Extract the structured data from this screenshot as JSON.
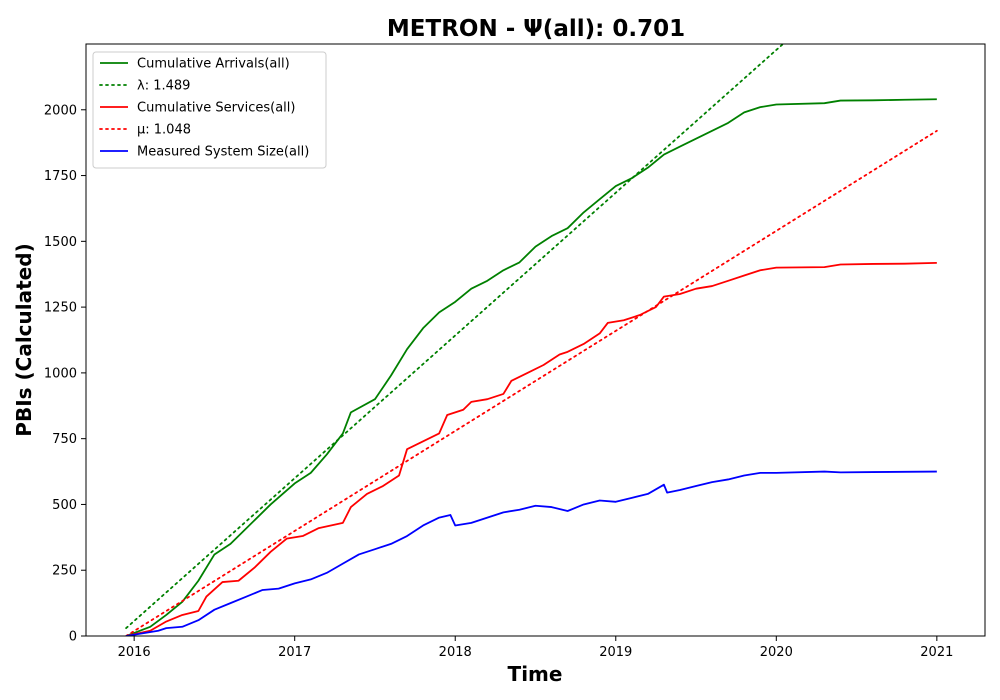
{
  "chart_data": {
    "type": "line",
    "title": "METRON -  Ψ(all): 0.701",
    "xlabel": "Time",
    "ylabel": "PBIs (Calculated)",
    "xlim": [
      2015.7,
      2021.3
    ],
    "ylim": [
      0,
      2250
    ],
    "x_ticks": [
      2016,
      2017,
      2018,
      2019,
      2020,
      2021
    ],
    "x_tick_labels": [
      "2016",
      "2017",
      "2018",
      "2019",
      "2020",
      "2021"
    ],
    "y_ticks": [
      0,
      250,
      500,
      750,
      1000,
      1250,
      1500,
      1750,
      2000
    ],
    "y_tick_labels": [
      "0",
      "250",
      "500",
      "750",
      "1000",
      "1250",
      "1500",
      "1750",
      "2000"
    ],
    "grid": false,
    "legend_position": "top-left",
    "series": [
      {
        "name": "Cumulative Arrivals(all)",
        "legend_label": "Cumulative Arrivals(all)",
        "color": "#008000",
        "style": "solid",
        "x": [
          2015.95,
          2016.1,
          2016.2,
          2016.3,
          2016.4,
          2016.5,
          2016.6,
          2016.75,
          2016.85,
          2017.0,
          2017.1,
          2017.2,
          2017.3,
          2017.35,
          2017.5,
          2017.6,
          2017.7,
          2017.8,
          2017.9,
          2018.0,
          2018.1,
          2018.2,
          2018.3,
          2018.4,
          2018.5,
          2018.6,
          2018.7,
          2018.8,
          2018.9,
          2019.0,
          2019.1,
          2019.2,
          2019.3,
          2019.4,
          2019.5,
          2019.6,
          2019.7,
          2019.8,
          2019.9,
          2020.0,
          2020.3,
          2020.4,
          2020.6,
          2020.8,
          2021.0
        ],
        "y": [
          0,
          35,
          80,
          130,
          210,
          310,
          350,
          440,
          500,
          580,
          620,
          690,
          770,
          850,
          900,
          990,
          1090,
          1170,
          1230,
          1270,
          1320,
          1350,
          1390,
          1420,
          1480,
          1520,
          1550,
          1610,
          1660,
          1710,
          1740,
          1780,
          1830,
          1860,
          1890,
          1920,
          1950,
          1990,
          2010,
          2020,
          2025,
          2035,
          2036,
          2038,
          2040
        ]
      },
      {
        "name": "λ: 1.489",
        "legend_label": "λ: 1.489",
        "color": "#008000",
        "style": "dotted",
        "x": [
          2015.95,
          2021.0
        ],
        "y": [
          30,
          2770
        ]
      },
      {
        "name": "Cumulative Services(all)",
        "legend_label": "Cumulative Services(all)",
        "color": "#ff0000",
        "style": "solid",
        "x": [
          2015.95,
          2016.1,
          2016.2,
          2016.3,
          2016.4,
          2016.45,
          2016.55,
          2016.65,
          2016.75,
          2016.85,
          2016.95,
          2017.05,
          2017.15,
          2017.3,
          2017.35,
          2017.45,
          2017.55,
          2017.65,
          2017.7,
          2017.8,
          2017.9,
          2017.95,
          2018.05,
          2018.1,
          2018.2,
          2018.3,
          2018.35,
          2018.45,
          2018.55,
          2018.65,
          2018.7,
          2018.8,
          2018.9,
          2018.95,
          2019.05,
          2019.15,
          2019.25,
          2019.3,
          2019.4,
          2019.5,
          2019.6,
          2019.7,
          2019.8,
          2019.9,
          2020.0,
          2020.3,
          2020.4,
          2020.6,
          2020.8,
          2021.0
        ],
        "y": [
          0,
          20,
          55,
          80,
          95,
          150,
          205,
          210,
          260,
          320,
          370,
          380,
          410,
          430,
          490,
          540,
          570,
          610,
          710,
          740,
          770,
          840,
          860,
          890,
          900,
          920,
          970,
          1000,
          1030,
          1070,
          1080,
          1110,
          1150,
          1190,
          1200,
          1220,
          1250,
          1290,
          1300,
          1320,
          1330,
          1350,
          1370,
          1390,
          1400,
          1402,
          1412,
          1414,
          1415,
          1418
        ]
      },
      {
        "name": "μ: 1.048",
        "legend_label": "μ: 1.048",
        "color": "#ff0000",
        "style": "dotted",
        "x": [
          2015.95,
          2021.0
        ],
        "y": [
          0,
          1920
        ]
      },
      {
        "name": "Measured System Size(all)",
        "legend_label": "Measured System Size(all)",
        "color": "#0000ff",
        "style": "solid",
        "x": [
          2015.95,
          2016.05,
          2016.15,
          2016.2,
          2016.3,
          2016.4,
          2016.5,
          2016.6,
          2016.7,
          2016.8,
          2016.9,
          2017.0,
          2017.1,
          2017.2,
          2017.3,
          2017.4,
          2017.5,
          2017.6,
          2017.7,
          2017.8,
          2017.9,
          2017.97,
          2018.0,
          2018.1,
          2018.2,
          2018.3,
          2018.4,
          2018.5,
          2018.6,
          2018.7,
          2018.8,
          2018.9,
          2019.0,
          2019.1,
          2019.2,
          2019.3,
          2019.32,
          2019.4,
          2019.5,
          2019.6,
          2019.7,
          2019.8,
          2019.9,
          2020.0,
          2020.3,
          2020.4,
          2020.6,
          2020.8,
          2021.0
        ],
        "y": [
          0,
          10,
          20,
          30,
          35,
          60,
          100,
          125,
          150,
          175,
          180,
          200,
          215,
          240,
          275,
          310,
          330,
          350,
          380,
          420,
          450,
          460,
          420,
          430,
          450,
          470,
          480,
          495,
          490,
          475,
          500,
          515,
          510,
          525,
          540,
          575,
          545,
          555,
          570,
          585,
          595,
          610,
          620,
          620,
          625,
          622,
          623,
          624,
          625
        ]
      }
    ]
  }
}
